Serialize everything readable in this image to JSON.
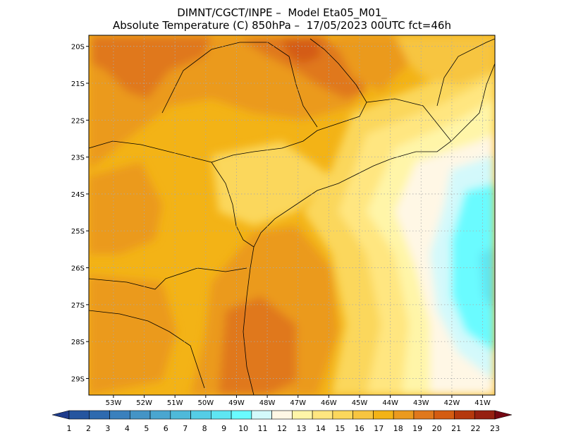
{
  "title": {
    "line1": "DIMNT/CGCT/INPE –  Model Eta05_M01_",
    "line2": "Absolute Temperature (C) 850hPa –  17/05/2023 00UTC fct=46h"
  },
  "map": {
    "lon_range": [
      -53.8,
      -40.6
    ],
    "lat_range": [
      -29.45,
      -19.7
    ],
    "lat_ticks": [
      {
        "value": -20,
        "label": "20S"
      },
      {
        "value": -21,
        "label": "21S"
      },
      {
        "value": -22,
        "label": "22S"
      },
      {
        "value": -23,
        "label": "23S"
      },
      {
        "value": -24,
        "label": "24S"
      },
      {
        "value": -25,
        "label": "25S"
      },
      {
        "value": -26,
        "label": "26S"
      },
      {
        "value": -27,
        "label": "27S"
      },
      {
        "value": -28,
        "label": "28S"
      },
      {
        "value": -29,
        "label": "29S"
      }
    ],
    "lon_ticks": [
      {
        "value": -53,
        "label": "53W"
      },
      {
        "value": -52,
        "label": "52W"
      },
      {
        "value": -51,
        "label": "51W"
      },
      {
        "value": -50,
        "label": "50W"
      },
      {
        "value": -49,
        "label": "49W"
      },
      {
        "value": -48,
        "label": "48W"
      },
      {
        "value": -47,
        "label": "47W"
      },
      {
        "value": -46,
        "label": "46W"
      },
      {
        "value": -45,
        "label": "45W"
      },
      {
        "value": -44,
        "label": "44W"
      },
      {
        "value": -43,
        "label": "43W"
      },
      {
        "value": -42,
        "label": "42W"
      },
      {
        "value": -41,
        "label": "41W"
      }
    ],
    "grid": "dotted"
  },
  "colorbar": {
    "labels": [
      "1",
      "2",
      "3",
      "4",
      "5",
      "6",
      "7",
      "8",
      "9",
      "10",
      "11",
      "12",
      "13",
      "14",
      "15",
      "16",
      "17",
      "18",
      "19",
      "20",
      "21",
      "22",
      "23"
    ],
    "colors": [
      "#1e3c8c",
      "#25559f",
      "#2e6aaf",
      "#3a80bd",
      "#4494c6",
      "#4aa6d0",
      "#4fb9d9",
      "#55cde6",
      "#5ee6f2",
      "#6afbff",
      "#d3f9fb",
      "#fff7e5",
      "#fff5a8",
      "#ffe680",
      "#fbd75c",
      "#f7c540",
      "#f3b316",
      "#eb9a1e",
      "#e0781c",
      "#d45c12",
      "#b5380d",
      "#962011",
      "#750813"
    ]
  },
  "field": {
    "description_levels": "shaded temperature levels, deg C"
  }
}
